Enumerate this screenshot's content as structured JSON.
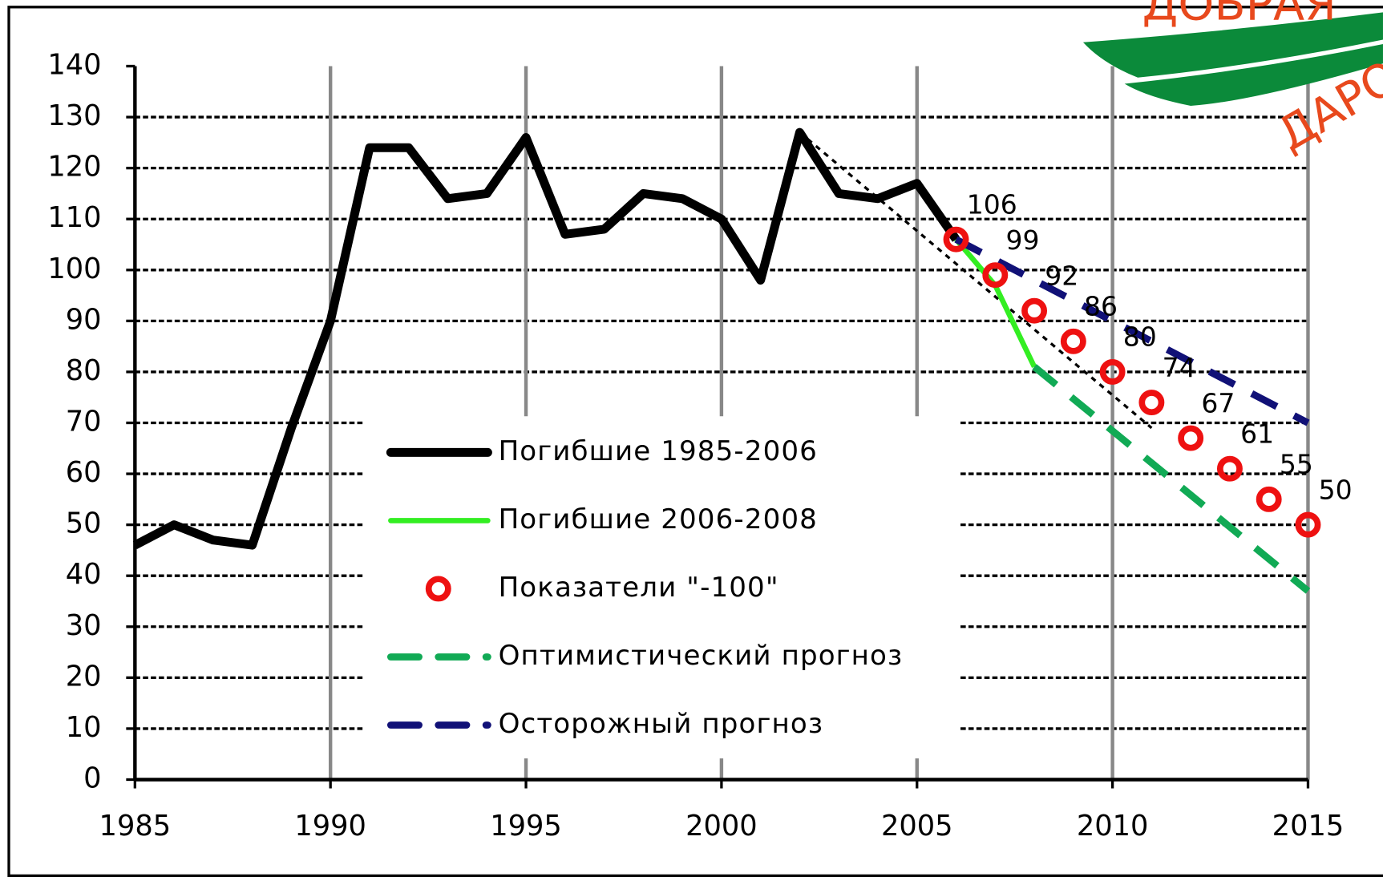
{
  "chart_data": {
    "type": "line",
    "xlim": [
      1985,
      2015
    ],
    "xticks": [
      1985,
      1990,
      1995,
      2000,
      2005,
      2010,
      2015
    ],
    "ylim": [
      0,
      140
    ],
    "yticks": [
      0,
      10,
      20,
      30,
      40,
      50,
      60,
      70,
      80,
      90,
      100,
      110,
      120,
      130,
      140
    ],
    "grid": true,
    "legend": "center",
    "logo": [
      "ДОБРАЯ",
      "ДАРО"
    ],
    "series": [
      {
        "name": "Погибшие 1985-2006",
        "color": "#000000",
        "style": "solid",
        "x": [
          1985,
          1986,
          1987,
          1988,
          1989,
          1990,
          1991,
          1992,
          1993,
          1994,
          1995,
          1996,
          1997,
          1998,
          1999,
          2000,
          2001,
          2002,
          2003,
          2004,
          2005,
          2006
        ],
        "values": [
          46,
          50,
          47,
          46,
          69,
          90,
          124,
          124,
          114,
          115,
          126,
          107,
          108,
          115,
          114,
          110,
          98,
          127,
          115,
          114,
          117,
          106
        ]
      },
      {
        "name": "Погибшие 2006-2008",
        "color": "#33ee22",
        "style": "solid",
        "x": [
          2006,
          2007,
          2008
        ],
        "values": [
          106,
          97,
          81
        ]
      },
      {
        "name": "Показатели \"-100\"",
        "color": "#ee1111",
        "style": "markers",
        "x": [
          2006,
          2007,
          2008,
          2009,
          2010,
          2011,
          2012,
          2013,
          2014,
          2015
        ],
        "values": [
          106,
          99,
          92,
          86,
          80,
          74,
          67,
          61,
          55,
          50
        ]
      },
      {
        "name": "Оптимистический прогноз",
        "color": "#11aa55",
        "style": "dashed",
        "x": [
          2008,
          2015
        ],
        "values": [
          81,
          37
        ]
      },
      {
        "name": "Осторожный прогноз",
        "color": "#111177",
        "style": "dashed",
        "x": [
          2006,
          2015
        ],
        "values": [
          106,
          70
        ]
      },
      {
        "color": "#000000",
        "style": "dotted",
        "x": [
          2002,
          2011
        ],
        "values": [
          127,
          69
        ]
      }
    ]
  }
}
